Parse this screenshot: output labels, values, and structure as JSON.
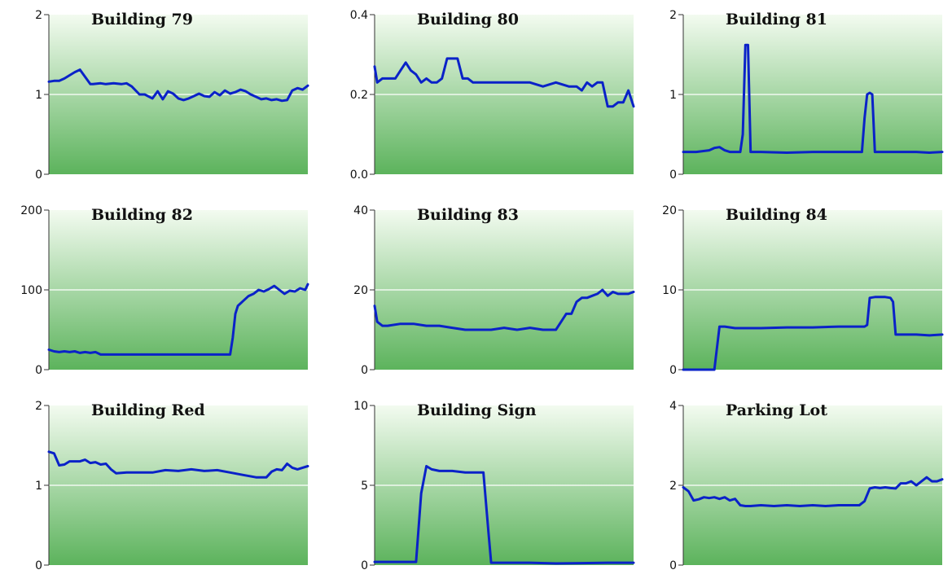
{
  "chart_data": [
    {
      "type": "line",
      "title": "Building 79",
      "ylim": [
        0,
        2
      ],
      "yticks": [
        "0",
        "1",
        "2"
      ],
      "grid": true,
      "series": [
        {
          "color": "#0a22c8",
          "x": [
            0,
            2,
            4,
            6,
            8,
            10,
            12,
            14,
            16,
            17,
            20,
            22,
            25,
            28,
            30,
            32,
            35,
            37,
            40,
            42,
            44,
            46,
            48,
            50,
            52,
            54,
            56,
            58,
            60,
            62,
            64,
            66,
            68,
            70,
            72,
            74,
            76,
            78,
            80,
            82,
            84,
            86,
            88,
            90,
            92,
            94,
            96,
            98,
            100
          ],
          "y": [
            1.16,
            1.17,
            1.17,
            1.2,
            1.24,
            1.28,
            1.31,
            1.22,
            1.13,
            1.13,
            1.14,
            1.13,
            1.14,
            1.13,
            1.14,
            1.1,
            1.0,
            1.0,
            0.95,
            1.04,
            0.94,
            1.04,
            1.01,
            0.95,
            0.93,
            0.95,
            0.98,
            1.01,
            0.98,
            0.97,
            1.03,
            0.99,
            1.05,
            1.01,
            1.03,
            1.06,
            1.04,
            1.0,
            0.97,
            0.94,
            0.95,
            0.93,
            0.94,
            0.92,
            0.93,
            1.05,
            1.08,
            1.06,
            1.11
          ]
        }
      ]
    },
    {
      "type": "line",
      "title": "Building 80",
      "ylim": [
        0,
        0.4
      ],
      "yticks": [
        "0.0",
        "0.2",
        "0.4"
      ],
      "grid": true,
      "series": [
        {
          "color": "#0a22c8",
          "x": [
            0,
            1,
            3,
            5,
            8,
            10,
            12,
            14,
            16,
            18,
            20,
            22,
            24,
            26,
            28,
            30,
            32,
            34,
            36,
            38,
            40,
            45,
            50,
            55,
            60,
            65,
            70,
            75,
            78,
            80,
            82,
            84,
            86,
            88,
            90,
            92,
            94,
            96,
            98,
            100
          ],
          "y": [
            0.27,
            0.23,
            0.24,
            0.24,
            0.24,
            0.26,
            0.28,
            0.26,
            0.25,
            0.23,
            0.24,
            0.23,
            0.23,
            0.24,
            0.29,
            0.29,
            0.29,
            0.24,
            0.24,
            0.23,
            0.23,
            0.23,
            0.23,
            0.23,
            0.23,
            0.22,
            0.23,
            0.22,
            0.22,
            0.21,
            0.23,
            0.22,
            0.23,
            0.23,
            0.17,
            0.17,
            0.18,
            0.18,
            0.21,
            0.17
          ]
        }
      ]
    },
    {
      "type": "line",
      "title": "Building 81",
      "ylim": [
        0,
        2
      ],
      "yticks": [
        "0",
        "1",
        "2"
      ],
      "grid": true,
      "series": [
        {
          "color": "#0a22c8",
          "x": [
            0,
            5,
            10,
            12,
            14,
            16,
            18,
            20,
            22,
            23,
            24,
            25,
            26,
            27,
            30,
            40,
            50,
            60,
            65,
            68,
            69,
            70,
            71,
            72,
            73,
            74,
            78,
            85,
            90,
            95,
            100
          ],
          "y": [
            0.28,
            0.28,
            0.3,
            0.33,
            0.34,
            0.3,
            0.28,
            0.28,
            0.28,
            0.5,
            1.62,
            1.62,
            0.28,
            0.28,
            0.28,
            0.27,
            0.28,
            0.28,
            0.28,
            0.28,
            0.28,
            0.7,
            1.0,
            1.02,
            1.0,
            0.28,
            0.28,
            0.28,
            0.28,
            0.27,
            0.28
          ]
        }
      ]
    },
    {
      "type": "line",
      "title": "Building 82",
      "ylim": [
        0,
        200
      ],
      "yticks": [
        "0",
        "100",
        "200"
      ],
      "grid": true,
      "series": [
        {
          "color": "#0a22c8",
          "x": [
            0,
            2,
            4,
            6,
            8,
            10,
            12,
            14,
            16,
            18,
            20,
            22,
            25,
            30,
            35,
            40,
            45,
            50,
            55,
            60,
            65,
            68,
            70,
            71,
            72,
            73,
            75,
            77,
            79,
            81,
            83,
            85,
            87,
            89,
            91,
            93,
            95,
            97,
            99,
            100
          ],
          "y": [
            25,
            23,
            22,
            23,
            22,
            23,
            21,
            22,
            21,
            22,
            19,
            19,
            19,
            19,
            19,
            19,
            19,
            19,
            19,
            19,
            19,
            19,
            19,
            40,
            70,
            80,
            86,
            92,
            95,
            100,
            98,
            101,
            105,
            100,
            95,
            99,
            98,
            102,
            100,
            107
          ]
        }
      ]
    },
    {
      "type": "line",
      "title": "Building 83",
      "ylim": [
        0,
        40
      ],
      "yticks": [
        "0",
        "20",
        "40"
      ],
      "grid": true,
      "series": [
        {
          "color": "#0a22c8",
          "x": [
            0,
            1,
            3,
            5,
            10,
            15,
            20,
            25,
            30,
            35,
            40,
            45,
            50,
            55,
            60,
            65,
            70,
            72,
            74,
            76,
            78,
            80,
            82,
            84,
            86,
            88,
            90,
            92,
            94,
            96,
            98,
            100
          ],
          "y": [
            16,
            12,
            11,
            11,
            11.5,
            11.5,
            11,
            11,
            10.5,
            10,
            10,
            10,
            10.5,
            10,
            10.5,
            10,
            10,
            12,
            14,
            14,
            17,
            18,
            18,
            18.5,
            19,
            20,
            18.5,
            19.5,
            19,
            19,
            19,
            19.5
          ]
        }
      ]
    },
    {
      "type": "line",
      "title": "Building 84",
      "ylim": [
        0,
        20
      ],
      "yticks": [
        "0",
        "10",
        "20"
      ],
      "grid": true,
      "series": [
        {
          "color": "#0a22c8",
          "x": [
            0,
            5,
            10,
            12,
            14,
            16,
            20,
            30,
            40,
            50,
            60,
            65,
            70,
            71,
            72,
            74,
            76,
            78,
            80,
            81,
            82,
            84,
            86,
            90,
            95,
            100
          ],
          "y": [
            0,
            0,
            0,
            0,
            5.4,
            5.4,
            5.2,
            5.2,
            5.3,
            5.3,
            5.4,
            5.4,
            5.4,
            5.6,
            9,
            9.1,
            9.1,
            9.1,
            9,
            8.5,
            4.4,
            4.4,
            4.4,
            4.4,
            4.3,
            4.4
          ]
        }
      ]
    },
    {
      "type": "line",
      "title": "Building Red",
      "ylim": [
        0,
        2
      ],
      "yticks": [
        "0",
        "1",
        "2"
      ],
      "grid": true,
      "series": [
        {
          "color": "#0a22c8",
          "x": [
            0,
            2,
            4,
            6,
            8,
            10,
            12,
            14,
            16,
            18,
            20,
            22,
            24,
            26,
            30,
            35,
            40,
            45,
            50,
            55,
            60,
            65,
            70,
            75,
            80,
            84,
            86,
            88,
            90,
            92,
            94,
            96,
            98,
            100
          ],
          "y": [
            1.42,
            1.4,
            1.25,
            1.26,
            1.3,
            1.3,
            1.3,
            1.32,
            1.28,
            1.29,
            1.26,
            1.27,
            1.2,
            1.15,
            1.16,
            1.16,
            1.16,
            1.19,
            1.18,
            1.2,
            1.18,
            1.19,
            1.16,
            1.13,
            1.1,
            1.1,
            1.17,
            1.2,
            1.19,
            1.27,
            1.22,
            1.2,
            1.22,
            1.24
          ]
        }
      ]
    },
    {
      "type": "line",
      "title": "Building Sign",
      "ylim": [
        0,
        10
      ],
      "yticks": [
        "0",
        "5",
        "10"
      ],
      "grid": true,
      "series": [
        {
          "color": "#0a22c8",
          "x": [
            0,
            5,
            10,
            15,
            16,
            18,
            20,
            22,
            25,
            30,
            35,
            40,
            42,
            44,
            45,
            50,
            60,
            70,
            80,
            90,
            95,
            100
          ],
          "y": [
            0.2,
            0.2,
            0.2,
            0.2,
            0.2,
            4.5,
            6.2,
            6.0,
            5.9,
            5.9,
            5.8,
            5.8,
            5.8,
            2.0,
            0.15,
            0.15,
            0.15,
            0.1,
            0.12,
            0.15,
            0.15,
            0.15
          ]
        }
      ]
    },
    {
      "type": "line",
      "title": "Parking Lot",
      "ylim": [
        0,
        4
      ],
      "yticks": [
        "0",
        "2",
        "4"
      ],
      "grid": true,
      "series": [
        {
          "color": "#0a22c8",
          "x": [
            0,
            2,
            4,
            6,
            8,
            10,
            12,
            14,
            16,
            18,
            20,
            22,
            24,
            26,
            30,
            35,
            40,
            45,
            50,
            55,
            60,
            65,
            68,
            70,
            72,
            74,
            76,
            78,
            80,
            82,
            84,
            86,
            88,
            90,
            92,
            94,
            96,
            98,
            100
          ],
          "y": [
            1.95,
            1.85,
            1.62,
            1.65,
            1.7,
            1.68,
            1.7,
            1.66,
            1.7,
            1.62,
            1.66,
            1.5,
            1.48,
            1.48,
            1.5,
            1.48,
            1.5,
            1.48,
            1.5,
            1.48,
            1.5,
            1.5,
            1.5,
            1.6,
            1.92,
            1.95,
            1.93,
            1.95,
            1.93,
            1.92,
            2.05,
            2.05,
            2.1,
            2.0,
            2.1,
            2.2,
            2.1,
            2.1,
            2.15
          ]
        }
      ]
    }
  ]
}
